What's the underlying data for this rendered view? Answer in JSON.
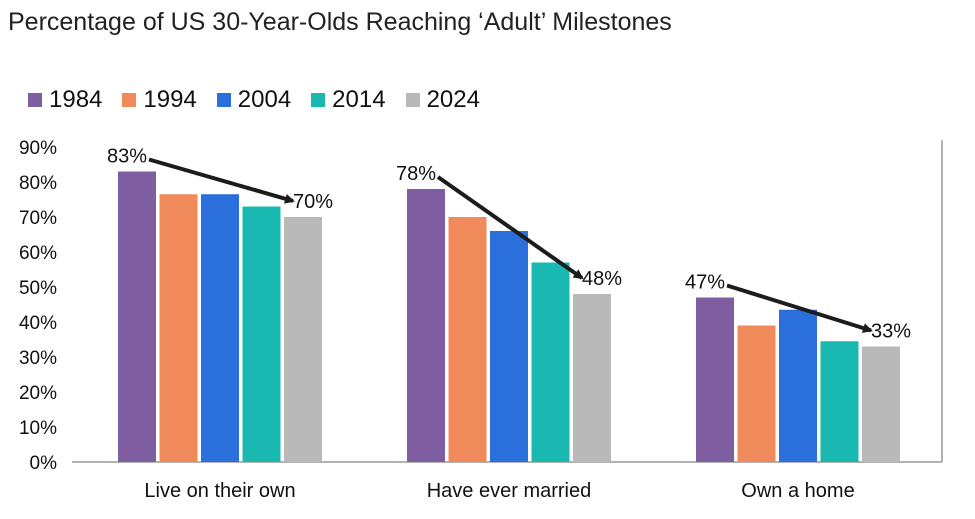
{
  "chart_data": {
    "type": "bar",
    "title": "Percentage of US 30-Year-Olds Reaching ‘Adult’ Milestones",
    "categories": [
      "Live on their own",
      "Have ever married",
      "Own a home"
    ],
    "series": [
      {
        "name": "1984",
        "color": "#7e5ea1",
        "values": [
          83,
          78,
          47
        ]
      },
      {
        "name": "1994",
        "color": "#f08a5b",
        "values": [
          76.5,
          70,
          39
        ]
      },
      {
        "name": "2004",
        "color": "#2a6fdb",
        "values": [
          76.5,
          66,
          43.5
        ]
      },
      {
        "name": "2014",
        "color": "#19b8b0",
        "values": [
          73,
          57,
          34.5
        ]
      },
      {
        "name": "2024",
        "color": "#b9b9b9",
        "values": [
          70,
          48,
          33
        ]
      }
    ],
    "y_ticks": [
      "0%",
      "10%",
      "20%",
      "30%",
      "40%",
      "50%",
      "60%",
      "70%",
      "80%",
      "90%"
    ],
    "ylim": [
      0,
      90
    ],
    "xlabel": "",
    "ylabel": "",
    "grid": false,
    "legend_position": "top-left",
    "annotations": [
      {
        "category": 0,
        "from_series": 0,
        "to_series": 4,
        "start_label": "83%",
        "end_label": "70%"
      },
      {
        "category": 1,
        "from_series": 0,
        "to_series": 4,
        "start_label": "78%",
        "end_label": "48%"
      },
      {
        "category": 2,
        "from_series": 0,
        "to_series": 4,
        "start_label": "47%",
        "end_label": "33%"
      }
    ],
    "axis_color": "#9a9a9a",
    "arrow_color": "#1c1c1c"
  }
}
